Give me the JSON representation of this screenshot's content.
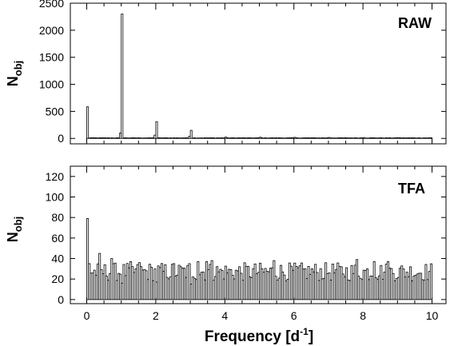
{
  "chart_data": [
    {
      "type": "bar",
      "panel_label": "RAW",
      "ylabel_main": "N",
      "ylabel_sub": "obj",
      "xlim": [
        0,
        10
      ],
      "ylim": [
        -100,
        2500
      ],
      "yticks": [
        0,
        500,
        1000,
        1500,
        2000,
        2500
      ],
      "xticks": [
        0,
        2,
        4,
        6,
        8,
        10
      ],
      "bin_width": 0.05,
      "baseline_count": 10,
      "peaks": [
        {
          "x": 0.0,
          "y": 585
        },
        {
          "x": 0.95,
          "y": 100
        },
        {
          "x": 1.0,
          "y": 2300
        },
        {
          "x": 1.95,
          "y": 60
        },
        {
          "x": 2.0,
          "y": 310
        },
        {
          "x": 2.95,
          "y": 40
        },
        {
          "x": 3.0,
          "y": 150
        },
        {
          "x": 4.0,
          "y": 25
        },
        {
          "x": 5.0,
          "y": 22
        },
        {
          "x": 6.0,
          "y": 20
        },
        {
          "x": 7.0,
          "y": 18
        },
        {
          "x": 8.0,
          "y": 16
        },
        {
          "x": 9.0,
          "y": 15
        }
      ]
    },
    {
      "type": "bar",
      "panel_label": "TFA",
      "ylabel_main": "N",
      "ylabel_sub": "obj",
      "xlim": [
        0,
        10
      ],
      "ylim": [
        -4,
        130
      ],
      "yticks": [
        0,
        20,
        40,
        60,
        80,
        100,
        120
      ],
      "xticks": [
        0,
        2,
        4,
        6,
        8,
        10
      ],
      "xlabel_main": "Frequency [d",
      "xlabel_sup": "-1",
      "xlabel_end": "]",
      "bin_width": 0.05,
      "typical_range": [
        18,
        36
      ],
      "peaks": [
        {
          "x": 0.0,
          "y": 79
        },
        {
          "x": 0.05,
          "y": 35
        },
        {
          "x": 0.35,
          "y": 45
        },
        {
          "x": 0.7,
          "y": 40
        },
        {
          "x": 1.0,
          "y": 16
        },
        {
          "x": 1.25,
          "y": 37
        },
        {
          "x": 1.5,
          "y": 36
        },
        {
          "x": 2.0,
          "y": 17
        },
        {
          "x": 2.5,
          "y": 35
        },
        {
          "x": 2.95,
          "y": 35
        },
        {
          "x": 3.0,
          "y": 15
        },
        {
          "x": 3.2,
          "y": 37
        },
        {
          "x": 3.45,
          "y": 37
        },
        {
          "x": 3.6,
          "y": 38
        },
        {
          "x": 5.4,
          "y": 38
        },
        {
          "x": 7.8,
          "y": 39
        },
        {
          "x": 8.3,
          "y": 37
        },
        {
          "x": 8.7,
          "y": 37
        }
      ]
    }
  ]
}
